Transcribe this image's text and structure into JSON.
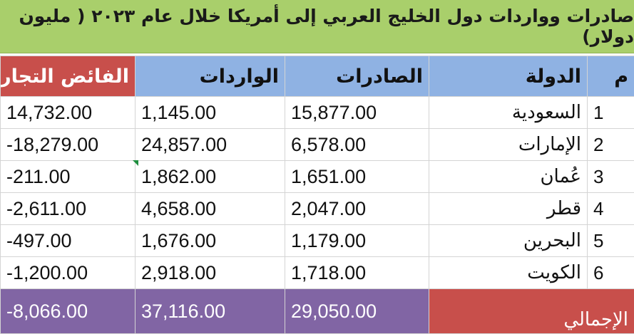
{
  "title": "صادرات وواردات دول الخليج العربي إلى أمريكا خلال عام ٢٠٢٣ ( مليون دولار)",
  "headers": {
    "index": "م",
    "country": "الدولة",
    "exports": "الصادرات",
    "imports": "الواردات",
    "surplus": "الفائض التجاري"
  },
  "rows": [
    {
      "index": "1",
      "country": "السعودية",
      "exports": "15,877.00",
      "imports": "1,145.00",
      "surplus": "14,732.00"
    },
    {
      "index": "2",
      "country": "الإمارات",
      "exports": "6,578.00",
      "imports": "24,857.00",
      "surplus": "-18,279.00"
    },
    {
      "index": "3",
      "country": "عُمان",
      "exports": "1,651.00",
      "imports": "1,862.00",
      "surplus": "-211.00"
    },
    {
      "index": "4",
      "country": "قطر",
      "exports": "2,047.00",
      "imports": "4,658.00",
      "surplus": "-2,611.00"
    },
    {
      "index": "5",
      "country": "البحرين",
      "exports": "1,179.00",
      "imports": "1,676.00",
      "surplus": "-497.00"
    },
    {
      "index": "6",
      "country": "الكويت",
      "exports": "1,718.00",
      "imports": "2,918.00",
      "surplus": "-1,200.00"
    }
  ],
  "total": {
    "label": "الإجمالي",
    "exports": "29,050.00",
    "imports": "37,116.00",
    "surplus": "-8,066.00"
  },
  "colors": {
    "title_bg": "#a9cf6b",
    "header_bg": "#8fb2e3",
    "surplus_header_bg": "#c84f4b",
    "total_bg": "#8165a4",
    "total_label_bg": "#c84f4b"
  }
}
